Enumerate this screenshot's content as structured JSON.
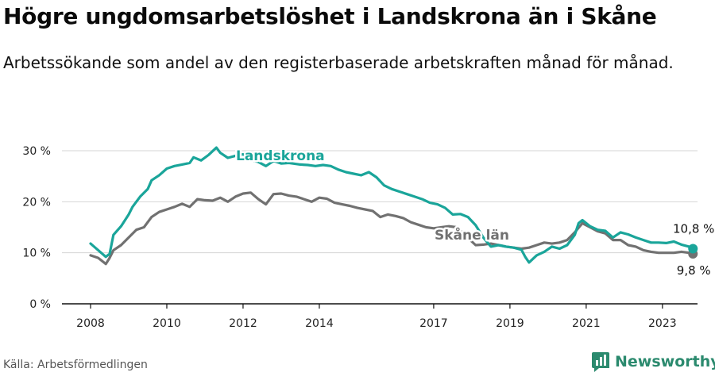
{
  "title": "Högre ungdomsarbetslöshet i Landskrona än i Skåne",
  "subtitle": "Arbetssökande som andel av den registerbaserade arbetskraften månad för månad.",
  "source": "Källa: Arbetsförmedlingen",
  "brand": "Newsworthy",
  "colors": {
    "landskrona": "#1aa59a",
    "skane": "#717171",
    "grid": "#d4d4d4",
    "brand": "#2b8a6e"
  },
  "chart_data": {
    "type": "line",
    "title": "Högre ungdomsarbetslöshet i Landskrona än i Skåne",
    "subtitle": "Arbetssökande som andel av den registerbaserade arbetskraften månad för månad.",
    "xlabel": "",
    "ylabel": "",
    "x_range": [
      2007.25,
      2023.92
    ],
    "ylim": [
      0,
      30
    ],
    "y_ticks": [
      0,
      10,
      20,
      30
    ],
    "y_tick_labels": [
      "0 %",
      "10 %",
      "20 %",
      "30 %"
    ],
    "x_ticks": [
      2008,
      2010,
      2012,
      2014,
      2017,
      2019,
      2021,
      2023
    ],
    "x_tick_labels": [
      "2008",
      "2010",
      "2012",
      "2014",
      "2017",
      "2019",
      "2021",
      "2023"
    ],
    "grid": true,
    "series": [
      {
        "name": "Landskrona",
        "label": "Landskrona",
        "end_label": "10,8 %",
        "end_value": 10.8,
        "points": [
          [
            2008.0,
            11.8
          ],
          [
            2008.2,
            10.5
          ],
          [
            2008.4,
            9.2
          ],
          [
            2008.5,
            9.8
          ],
          [
            2008.6,
            13.5
          ],
          [
            2008.8,
            15.2
          ],
          [
            2009.0,
            17.5
          ],
          [
            2009.1,
            19.0
          ],
          [
            2009.3,
            21.0
          ],
          [
            2009.5,
            22.5
          ],
          [
            2009.6,
            24.2
          ],
          [
            2009.8,
            25.2
          ],
          [
            2010.0,
            26.5
          ],
          [
            2010.2,
            27.0
          ],
          [
            2010.4,
            27.3
          ],
          [
            2010.6,
            27.6
          ],
          [
            2010.7,
            28.7
          ],
          [
            2010.9,
            28.1
          ],
          [
            2011.1,
            29.2
          ],
          [
            2011.3,
            30.6
          ],
          [
            2011.4,
            29.6
          ],
          [
            2011.6,
            28.6
          ],
          [
            2011.8,
            29.0
          ],
          [
            2012.0,
            29.3
          ],
          [
            2012.2,
            28.2
          ],
          [
            2012.4,
            27.8
          ],
          [
            2012.6,
            27.0
          ],
          [
            2012.8,
            28.0
          ],
          [
            2013.0,
            27.5
          ],
          [
            2013.2,
            27.6
          ],
          [
            2013.5,
            27.3
          ],
          [
            2013.7,
            27.2
          ],
          [
            2013.9,
            27.0
          ],
          [
            2014.1,
            27.2
          ],
          [
            2014.3,
            27.0
          ],
          [
            2014.5,
            26.3
          ],
          [
            2014.7,
            25.8
          ],
          [
            2014.9,
            25.5
          ],
          [
            2015.1,
            25.2
          ],
          [
            2015.3,
            25.8
          ],
          [
            2015.5,
            24.8
          ],
          [
            2015.7,
            23.2
          ],
          [
            2015.9,
            22.5
          ],
          [
            2016.1,
            22.0
          ],
          [
            2016.3,
            21.5
          ],
          [
            2016.5,
            21.0
          ],
          [
            2016.7,
            20.5
          ],
          [
            2016.9,
            19.8
          ],
          [
            2017.1,
            19.5
          ],
          [
            2017.3,
            18.8
          ],
          [
            2017.5,
            17.5
          ],
          [
            2017.7,
            17.6
          ],
          [
            2017.9,
            17.0
          ],
          [
            2018.1,
            15.4
          ],
          [
            2018.3,
            13.0
          ],
          [
            2018.5,
            11.2
          ],
          [
            2018.7,
            11.5
          ],
          [
            2018.9,
            11.2
          ],
          [
            2019.1,
            11.0
          ],
          [
            2019.3,
            10.6
          ],
          [
            2019.4,
            9.2
          ],
          [
            2019.5,
            8.1
          ],
          [
            2019.7,
            9.5
          ],
          [
            2019.9,
            10.2
          ],
          [
            2020.1,
            11.2
          ],
          [
            2020.3,
            10.8
          ],
          [
            2020.5,
            11.5
          ],
          [
            2020.7,
            13.5
          ],
          [
            2020.8,
            15.8
          ],
          [
            2020.9,
            16.4
          ],
          [
            2021.1,
            15.2
          ],
          [
            2021.3,
            14.5
          ],
          [
            2021.5,
            14.3
          ],
          [
            2021.7,
            13.0
          ],
          [
            2021.9,
            14.0
          ],
          [
            2022.1,
            13.6
          ],
          [
            2022.3,
            13.0
          ],
          [
            2022.5,
            12.5
          ],
          [
            2022.7,
            12.0
          ],
          [
            2022.9,
            12.0
          ],
          [
            2023.1,
            11.9
          ],
          [
            2023.3,
            12.2
          ],
          [
            2023.5,
            11.6
          ],
          [
            2023.7,
            11.2
          ],
          [
            2023.8,
            10.8
          ]
        ]
      },
      {
        "name": "Skåne län",
        "label": "Skåne län",
        "end_label": "9,8 %",
        "end_value": 9.8,
        "points": [
          [
            2008.0,
            9.5
          ],
          [
            2008.2,
            9.0
          ],
          [
            2008.4,
            7.8
          ],
          [
            2008.5,
            9.0
          ],
          [
            2008.6,
            10.5
          ],
          [
            2008.8,
            11.5
          ],
          [
            2009.0,
            13.0
          ],
          [
            2009.2,
            14.5
          ],
          [
            2009.4,
            15.0
          ],
          [
            2009.6,
            17.0
          ],
          [
            2009.8,
            18.0
          ],
          [
            2010.0,
            18.5
          ],
          [
            2010.2,
            19.0
          ],
          [
            2010.4,
            19.6
          ],
          [
            2010.6,
            19.0
          ],
          [
            2010.8,
            20.5
          ],
          [
            2011.0,
            20.3
          ],
          [
            2011.2,
            20.2
          ],
          [
            2011.4,
            20.8
          ],
          [
            2011.6,
            20.0
          ],
          [
            2011.8,
            21.0
          ],
          [
            2012.0,
            21.6
          ],
          [
            2012.2,
            21.8
          ],
          [
            2012.4,
            20.5
          ],
          [
            2012.6,
            19.5
          ],
          [
            2012.8,
            21.5
          ],
          [
            2013.0,
            21.6
          ],
          [
            2013.2,
            21.2
          ],
          [
            2013.4,
            21.0
          ],
          [
            2013.6,
            20.5
          ],
          [
            2013.8,
            20.0
          ],
          [
            2014.0,
            20.8
          ],
          [
            2014.2,
            20.6
          ],
          [
            2014.4,
            19.8
          ],
          [
            2014.6,
            19.5
          ],
          [
            2014.8,
            19.2
          ],
          [
            2015.0,
            18.8
          ],
          [
            2015.2,
            18.5
          ],
          [
            2015.4,
            18.2
          ],
          [
            2015.6,
            17.0
          ],
          [
            2015.8,
            17.5
          ],
          [
            2016.0,
            17.2
          ],
          [
            2016.2,
            16.8
          ],
          [
            2016.4,
            16.0
          ],
          [
            2016.6,
            15.5
          ],
          [
            2016.8,
            15.0
          ],
          [
            2017.0,
            14.8
          ],
          [
            2017.2,
            15.0
          ],
          [
            2017.4,
            15.2
          ],
          [
            2017.6,
            15.0
          ],
          [
            2018.1,
            11.5
          ],
          [
            2018.3,
            11.6
          ],
          [
            2018.5,
            11.8
          ],
          [
            2018.7,
            11.5
          ],
          [
            2018.9,
            11.2
          ],
          [
            2019.1,
            11.0
          ],
          [
            2019.3,
            10.8
          ],
          [
            2019.5,
            11.0
          ],
          [
            2019.7,
            11.5
          ],
          [
            2019.9,
            12.0
          ],
          [
            2020.1,
            11.8
          ],
          [
            2020.3,
            12.0
          ],
          [
            2020.5,
            12.5
          ],
          [
            2020.7,
            14.0
          ],
          [
            2020.9,
            15.8
          ],
          [
            2021.1,
            15.0
          ],
          [
            2021.3,
            14.2
          ],
          [
            2021.5,
            13.8
          ],
          [
            2021.7,
            12.5
          ],
          [
            2021.9,
            12.5
          ],
          [
            2022.1,
            11.5
          ],
          [
            2022.3,
            11.2
          ],
          [
            2022.5,
            10.5
          ],
          [
            2022.7,
            10.2
          ],
          [
            2022.9,
            10.0
          ],
          [
            2023.1,
            10.0
          ],
          [
            2023.3,
            10.0
          ],
          [
            2023.5,
            10.2
          ],
          [
            2023.7,
            10.0
          ],
          [
            2023.8,
            9.8
          ]
        ]
      }
    ]
  }
}
